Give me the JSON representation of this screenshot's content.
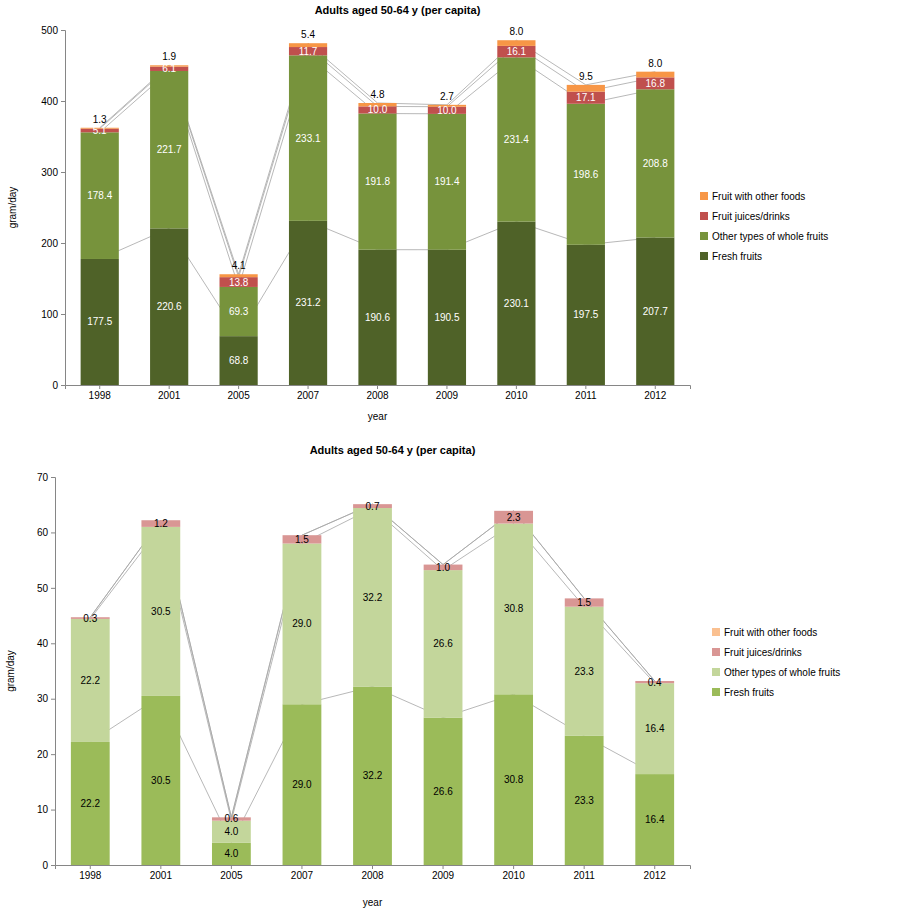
{
  "chart_data": [
    {
      "type": "bar",
      "stacked": true,
      "data_labels": true,
      "grid": false,
      "legend": "right",
      "title": "Adults aged 50-64 y (per capita)",
      "x_label": "year",
      "y_label": "gram/day",
      "categories": [
        "1998",
        "2001",
        "2005",
        "2007",
        "2008",
        "2009",
        "2010",
        "2011",
        "2012"
      ],
      "ylim": [
        0,
        500
      ],
      "yticks": [
        0,
        100,
        200,
        300,
        400,
        500
      ],
      "series": [
        {
          "name": "Fresh fruits",
          "color": "#4f6228",
          "values": [
            177.5,
            220.6,
            68.8,
            231.2,
            190.6,
            190.5,
            230.1,
            197.5,
            207.7
          ],
          "value_labels": [
            "177.5",
            "220.6",
            "68.8",
            "231.2",
            "190.6",
            "190.5",
            "230.1",
            "197.5",
            "207.7"
          ]
        },
        {
          "name": "Other types of whole fruits",
          "color": "#77933c",
          "values": [
            178.4,
            221.7,
            69.3,
            233.1,
            191.8,
            191.4,
            231.4,
            198.6,
            208.8
          ],
          "value_labels": [
            "178.4",
            "221.7",
            "69.3",
            "233.1",
            "191.8",
            "191.4",
            "231.4",
            "198.6",
            "208.8"
          ]
        },
        {
          "name": "Fruit juices/drinks",
          "color": "#c0504d",
          "values": [
            5.1,
            6.1,
            13.8,
            11.7,
            10.0,
            10.0,
            16.1,
            17.1,
            16.8
          ],
          "value_labels": [
            "5.1",
            "6.1",
            "13.8",
            "11.7",
            "10.0",
            "10.0",
            "16.1",
            "17.1",
            "16.8"
          ]
        },
        {
          "name": "Fruit with other foods",
          "color": "#f79646",
          "values": [
            1.3,
            1.9,
            4.1,
            5.4,
            4.8,
            2.7,
            8.0,
            9.5,
            8.0
          ],
          "value_labels": [
            "1.3",
            "1.9",
            "4.1",
            "5.4",
            "4.8",
            "2.7",
            "8.0",
            "9.5",
            "8.0"
          ]
        }
      ]
    },
    {
      "type": "bar",
      "stacked": true,
      "data_labels": true,
      "grid": false,
      "legend": "right",
      "title": "Adults aged 50-64 y (per capita)",
      "x_label": "year",
      "y_label": "gram/day",
      "categories": [
        "1998",
        "2001",
        "2005",
        "2007",
        "2008",
        "2009",
        "2010",
        "2011",
        "2012"
      ],
      "ylim": [
        0,
        70
      ],
      "yticks": [
        0,
        10,
        20,
        30,
        40,
        50,
        60,
        70
      ],
      "series": [
        {
          "name": "Fresh fruits",
          "color": "#9bbb59",
          "values": [
            22.2,
            30.5,
            4.0,
            29.0,
            32.2,
            26.6,
            30.8,
            23.3,
            16.4
          ],
          "value_labels": [
            "22.2",
            "30.5",
            "4.0",
            "29.0",
            "32.2",
            "26.6",
            "30.8",
            "23.3",
            "16.4"
          ]
        },
        {
          "name": "Other types of whole fruits",
          "color": "#c3d69b",
          "values": [
            22.2,
            30.5,
            4.0,
            29.0,
            32.2,
            26.6,
            30.8,
            23.3,
            16.4
          ],
          "value_labels": [
            "22.2",
            "30.5",
            "4.0",
            "29.0",
            "32.2",
            "26.6",
            "30.8",
            "23.3",
            "16.4"
          ]
        },
        {
          "name": "Fruit juices/drinks",
          "color": "#d99694",
          "values": [
            0.3,
            1.2,
            0.6,
            1.5,
            0.7,
            1.0,
            2.3,
            1.5,
            0.4
          ],
          "value_labels": [
            "0.3",
            "1.2",
            "0.6",
            "1.5",
            "0.7",
            "1.0",
            "2.3",
            "1.5",
            "0.4"
          ]
        },
        {
          "name": "Fruit with other foods",
          "color": "#fac090",
          "data_labels": false,
          "values": [
            0,
            0,
            0,
            0,
            0,
            0,
            0,
            0,
            0
          ]
        }
      ]
    }
  ]
}
